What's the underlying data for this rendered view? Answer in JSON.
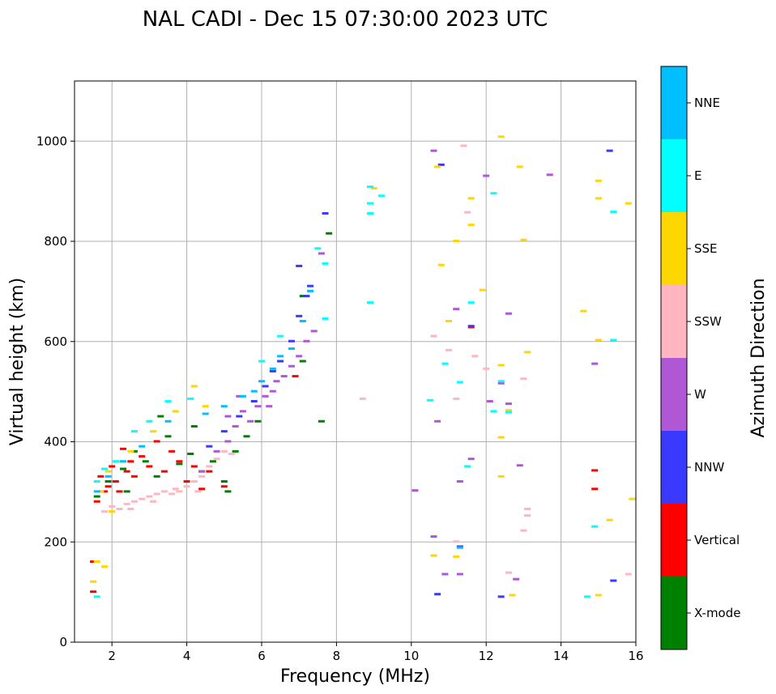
{
  "chart_data": {
    "type": "scatter",
    "title": "NAL CADI - Dec 15 07:30:00 2023 UTC",
    "xlabel": "Frequency (MHz)",
    "ylabel": "Virtual height (km)",
    "xlim": [
      1,
      16
    ],
    "ylim": [
      0,
      1120
    ],
    "xticks": [
      2,
      4,
      6,
      8,
      10,
      12,
      14,
      16
    ],
    "yticks": [
      0,
      200,
      400,
      600,
      800,
      1000
    ],
    "grid": true,
    "colorbar": {
      "label": "Azimuth Direction",
      "categories": [
        "X-mode",
        "Vertical",
        "NNW",
        "W",
        "SSW",
        "SSE",
        "E",
        "NNE"
      ],
      "colors": [
        "#008000",
        "#ff0000",
        "#3a3aff",
        "#b057d6",
        "#ffb6c1",
        "#ffd700",
        "#00ffff",
        "#00bfff"
      ]
    },
    "series": [
      {
        "name": "X-mode",
        "color": "#008000",
        "points": [
          [
            1.6,
            290
          ],
          [
            1.9,
            320
          ],
          [
            2.3,
            345
          ],
          [
            2.6,
            380
          ],
          [
            2.9,
            360
          ],
          [
            3.2,
            330
          ],
          [
            3.5,
            410
          ],
          [
            3.8,
            355
          ],
          [
            4.1,
            375
          ],
          [
            4.4,
            340
          ],
          [
            4.7,
            360
          ],
          [
            5.0,
            320
          ],
          [
            5.3,
            380
          ],
          [
            5.6,
            410
          ],
          [
            5.9,
            440
          ],
          [
            7.1,
            560
          ],
          [
            7.6,
            440
          ],
          [
            7.8,
            815
          ],
          [
            7.1,
            690
          ],
          [
            3.3,
            450
          ],
          [
            2.4,
            300
          ],
          [
            4.2,
            430
          ],
          [
            5.1,
            300
          ]
        ]
      },
      {
        "name": "Vertical",
        "color": "#ff0000",
        "points": [
          [
            1.5,
            100
          ],
          [
            1.6,
            280
          ],
          [
            1.7,
            330
          ],
          [
            1.8,
            300
          ],
          [
            1.9,
            310
          ],
          [
            2.0,
            350
          ],
          [
            2.1,
            320
          ],
          [
            2.2,
            300
          ],
          [
            2.3,
            385
          ],
          [
            2.4,
            340
          ],
          [
            2.5,
            360
          ],
          [
            2.6,
            330
          ],
          [
            2.8,
            370
          ],
          [
            3.0,
            350
          ],
          [
            3.2,
            400
          ],
          [
            3.4,
            340
          ],
          [
            3.6,
            380
          ],
          [
            3.8,
            360
          ],
          [
            4.0,
            320
          ],
          [
            4.2,
            350
          ],
          [
            4.4,
            305
          ],
          [
            4.6,
            340
          ],
          [
            5.0,
            310
          ],
          [
            6.9,
            530
          ],
          [
            11.6,
            628
          ],
          [
            14.9,
            305
          ],
          [
            14.9,
            342
          ],
          [
            1.5,
            160
          ]
        ]
      },
      {
        "name": "NNW",
        "color": "#3a3aff",
        "points": [
          [
            4.6,
            390
          ],
          [
            5.0,
            420
          ],
          [
            5.4,
            450
          ],
          [
            5.8,
            480
          ],
          [
            6.1,
            510
          ],
          [
            6.3,
            540
          ],
          [
            6.5,
            560
          ],
          [
            6.8,
            600
          ],
          [
            7.0,
            650
          ],
          [
            7.2,
            690
          ],
          [
            7.0,
            750
          ],
          [
            7.3,
            710
          ],
          [
            7.7,
            855
          ],
          [
            10.7,
            95
          ],
          [
            11.3,
            190
          ],
          [
            12.4,
            90
          ],
          [
            15.3,
            980
          ],
          [
            15.4,
            122
          ],
          [
            10.8,
            952
          ],
          [
            11.6,
            630
          ]
        ]
      },
      {
        "name": "W",
        "color": "#b057d6",
        "points": [
          [
            4.8,
            380
          ],
          [
            5.1,
            400
          ],
          [
            5.3,
            430
          ],
          [
            5.5,
            460
          ],
          [
            5.7,
            440
          ],
          [
            5.9,
            470
          ],
          [
            6.1,
            490
          ],
          [
            6.3,
            500
          ],
          [
            6.4,
            520
          ],
          [
            6.6,
            530
          ],
          [
            6.8,
            550
          ],
          [
            7.0,
            570
          ],
          [
            7.2,
            600
          ],
          [
            7.4,
            620
          ],
          [
            7.6,
            775
          ],
          [
            5.4,
            490
          ],
          [
            4.4,
            340
          ],
          [
            5.1,
            450
          ],
          [
            6.2,
            470
          ],
          [
            10.1,
            302
          ],
          [
            10.6,
            210
          ],
          [
            10.9,
            135
          ],
          [
            11.3,
            135
          ],
          [
            11.3,
            320
          ],
          [
            10.7,
            440
          ],
          [
            11.6,
            365
          ],
          [
            12.0,
            930
          ],
          [
            12.1,
            480
          ],
          [
            12.6,
            475
          ],
          [
            12.6,
            655
          ],
          [
            12.8,
            125
          ],
          [
            12.9,
            352
          ],
          [
            13.7,
            932
          ],
          [
            10.6,
            980
          ],
          [
            14.9,
            555
          ],
          [
            11.2,
            664
          ],
          [
            12.4,
            516
          ]
        ]
      },
      {
        "name": "SSW",
        "color": "#ffb6c1",
        "points": [
          [
            1.8,
            260
          ],
          [
            2.0,
            270
          ],
          [
            2.2,
            265
          ],
          [
            2.4,
            275
          ],
          [
            2.6,
            280
          ],
          [
            2.8,
            285
          ],
          [
            3.0,
            290
          ],
          [
            3.2,
            295
          ],
          [
            3.4,
            300
          ],
          [
            3.6,
            295
          ],
          [
            3.8,
            300
          ],
          [
            4.0,
            310
          ],
          [
            4.2,
            320
          ],
          [
            4.4,
            330
          ],
          [
            4.6,
            350
          ],
          [
            4.8,
            365
          ],
          [
            5.0,
            380
          ],
          [
            5.2,
            375
          ],
          [
            2.5,
            265
          ],
          [
            3.1,
            280
          ],
          [
            3.7,
            305
          ],
          [
            4.3,
            300
          ],
          [
            8.7,
            485
          ],
          [
            10.6,
            610
          ],
          [
            11.0,
            582
          ],
          [
            11.2,
            200
          ],
          [
            11.7,
            570
          ],
          [
            12.6,
            138
          ],
          [
            13.0,
            222
          ],
          [
            13.1,
            252
          ],
          [
            13.1,
            265
          ],
          [
            13.0,
            525
          ],
          [
            15.8,
            135
          ],
          [
            12.0,
            545
          ],
          [
            11.2,
            485
          ],
          [
            11.5,
            857
          ],
          [
            11.4,
            990
          ]
        ]
      },
      {
        "name": "SSE",
        "color": "#ffd700",
        "points": [
          [
            1.5,
            120
          ],
          [
            1.6,
            160
          ],
          [
            1.8,
            150
          ],
          [
            2.0,
            260
          ],
          [
            1.7,
            300
          ],
          [
            1.9,
            340
          ],
          [
            2.2,
            360
          ],
          [
            2.5,
            380
          ],
          [
            3.1,
            420
          ],
          [
            3.7,
            460
          ],
          [
            4.2,
            510
          ],
          [
            4.5,
            470
          ],
          [
            10.6,
            172
          ],
          [
            11.2,
            170
          ],
          [
            11.5,
            350
          ],
          [
            12.4,
            330
          ],
          [
            12.4,
            408
          ],
          [
            12.7,
            93
          ],
          [
            12.6,
            462
          ],
          [
            15.0,
            93
          ],
          [
            15.3,
            243
          ],
          [
            15.0,
            885
          ],
          [
            15.0,
            920
          ],
          [
            15.0,
            602
          ],
          [
            14.6,
            660
          ],
          [
            15.9,
            285
          ],
          [
            15.8,
            875
          ],
          [
            12.4,
            1008
          ],
          [
            12.9,
            948
          ],
          [
            11.0,
            640
          ],
          [
            11.2,
            800
          ],
          [
            11.6,
            885
          ],
          [
            11.6,
            832
          ],
          [
            9.0,
            905
          ],
          [
            10.7,
            948
          ],
          [
            13.0,
            802
          ],
          [
            13.1,
            578
          ],
          [
            11.9,
            702
          ],
          [
            12.4,
            552
          ],
          [
            10.8,
            752
          ]
        ]
      },
      {
        "name": "E",
        "color": "#00ffff",
        "points": [
          [
            1.6,
            90
          ],
          [
            1.6,
            320
          ],
          [
            1.8,
            345
          ],
          [
            2.1,
            360
          ],
          [
            2.6,
            420
          ],
          [
            3.0,
            440
          ],
          [
            3.5,
            480
          ],
          [
            4.1,
            485
          ],
          [
            6.0,
            560
          ],
          [
            6.5,
            610
          ],
          [
            7.7,
            645
          ],
          [
            7.7,
            755
          ],
          [
            7.5,
            785
          ],
          [
            8.9,
            855
          ],
          [
            8.9,
            875
          ],
          [
            8.9,
            908
          ],
          [
            9.2,
            890
          ],
          [
            8.9,
            677
          ],
          [
            10.9,
            555
          ],
          [
            10.5,
            482
          ],
          [
            11.3,
            518
          ],
          [
            11.6,
            677
          ],
          [
            12.2,
            460
          ],
          [
            12.4,
            520
          ],
          [
            12.6,
            458
          ],
          [
            12.2,
            895
          ],
          [
            14.7,
            90
          ],
          [
            14.9,
            230
          ],
          [
            15.4,
            858
          ],
          [
            15.4,
            602
          ],
          [
            11.5,
            350
          ]
        ]
      },
      {
        "name": "NNE",
        "color": "#00bfff",
        "points": [
          [
            1.6,
            300
          ],
          [
            1.9,
            330
          ],
          [
            2.3,
            360
          ],
          [
            2.8,
            390
          ],
          [
            3.5,
            440
          ],
          [
            4.5,
            455
          ],
          [
            5.0,
            470
          ],
          [
            5.5,
            490
          ],
          [
            5.8,
            500
          ],
          [
            6.0,
            520
          ],
          [
            6.3,
            545
          ],
          [
            6.5,
            570
          ],
          [
            6.8,
            585
          ],
          [
            7.1,
            640
          ],
          [
            7.3,
            700
          ],
          [
            11.3,
            188
          ]
        ]
      }
    ]
  }
}
